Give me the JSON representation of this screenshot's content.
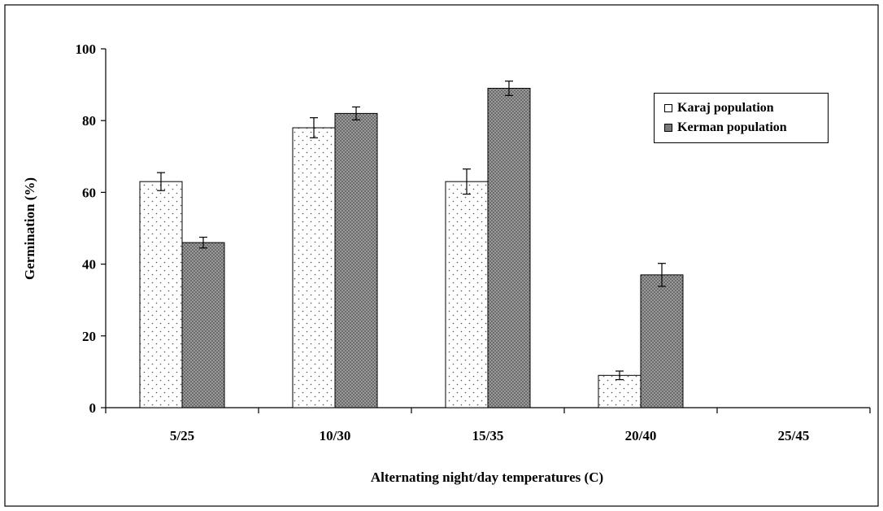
{
  "chart_data": {
    "type": "bar",
    "title": "",
    "xlabel": "Alternating night/day temperatures (C)",
    "ylabel": "Germination (%)",
    "ylim": [
      0,
      100
    ],
    "yticks": [
      "0",
      "20",
      "40",
      "60",
      "80",
      "100"
    ],
    "categories": [
      "5/25",
      "10/30",
      "15/35",
      "20/40",
      "25/45"
    ],
    "series": [
      {
        "name": "Karaj population",
        "values": [
          63,
          78,
          63,
          9,
          0
        ],
        "errors": [
          2.5,
          2.8,
          3.5,
          1.2,
          0
        ],
        "pattern": "dotted"
      },
      {
        "name": "Kerman population",
        "values": [
          46,
          82,
          89,
          37,
          0
        ],
        "errors": [
          1.5,
          1.8,
          2.0,
          3.2,
          0
        ],
        "pattern": "dark-crosshatch"
      }
    ],
    "legend_position": "top-right",
    "grid": false
  }
}
